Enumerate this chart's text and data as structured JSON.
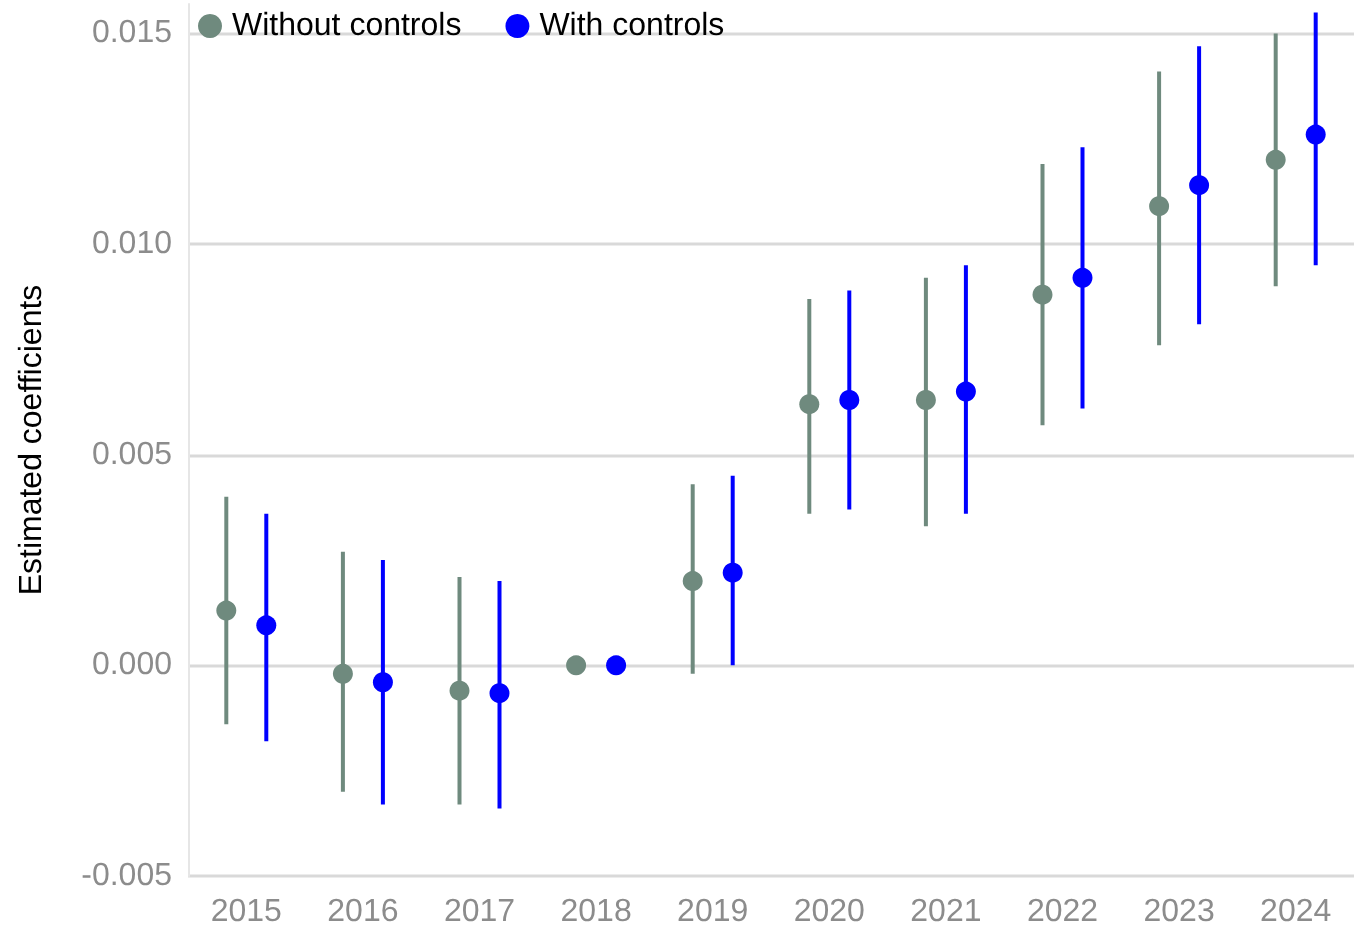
{
  "chart_data": {
    "type": "scatter",
    "ylabel": "Estimated coefficients",
    "categories": [
      "2015",
      "2016",
      "2017",
      "2018",
      "2019",
      "2020",
      "2021",
      "2022",
      "2023",
      "2024"
    ],
    "series": [
      {
        "name": "Without controls",
        "color": "#6f8a7e",
        "values": [
          0.0013,
          -0.0002,
          -0.0006,
          0,
          0.002,
          0.0062,
          0.0063,
          0.0088,
          0.0109,
          0.012
        ],
        "errors": [
          [
            -0.0014,
            0.004
          ],
          [
            -0.003,
            0.0027
          ],
          [
            -0.0033,
            0.0021
          ],
          null,
          [
            -0.0002,
            0.0043
          ],
          [
            0.0036,
            0.0087
          ],
          [
            0.0033,
            0.0092
          ],
          [
            0.0057,
            0.0119
          ],
          [
            0.0076,
            0.0141
          ],
          [
            0.009,
            0.015
          ]
        ]
      },
      {
        "name": "With controls",
        "color": "#0000ff",
        "values": [
          0.00095,
          -0.0004,
          -0.00066,
          0,
          0.0022,
          0.0063,
          0.0065,
          0.0092,
          0.0114,
          0.0126
        ],
        "errors": [
          [
            -0.0018,
            0.0036
          ],
          [
            -0.0033,
            0.0025
          ],
          [
            -0.0034,
            0.002
          ],
          null,
          [
            0.0,
            0.0045
          ],
          [
            0.0037,
            0.0089
          ],
          [
            0.0036,
            0.0095
          ],
          [
            0.0061,
            0.0123
          ],
          [
            0.0081,
            0.0147
          ],
          [
            0.0095,
            0.0155
          ]
        ]
      }
    ],
    "ylim": [
      -0.005,
      0.0157
    ],
    "yticks": [
      {
        "value": -0.005,
        "label": "-0.005"
      },
      {
        "value": 0,
        "label": "0.000"
      },
      {
        "value": 0.005,
        "label": "0.005"
      },
      {
        "value": 0.01,
        "label": "0.010"
      },
      {
        "value": 0.015,
        "label": "0.015"
      }
    ],
    "grid": "y",
    "legend": "top left",
    "marker": "circle"
  }
}
